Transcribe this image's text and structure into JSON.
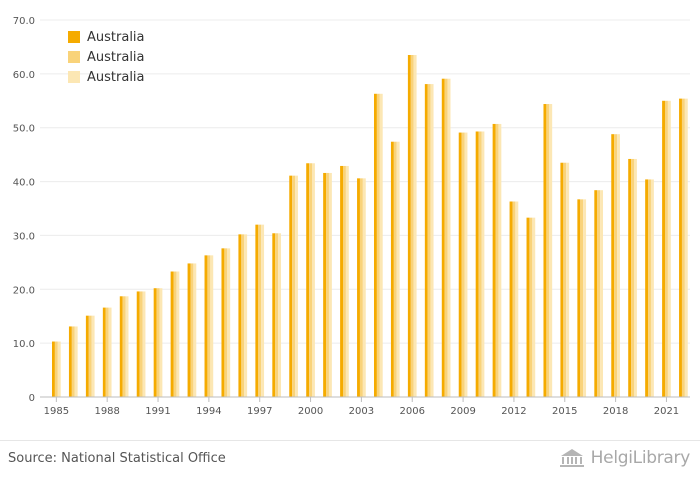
{
  "chart_data": {
    "type": "bar",
    "categories": [
      "1985",
      "1986",
      "1987",
      "1988",
      "1989",
      "1990",
      "1991",
      "1992",
      "1993",
      "1994",
      "1995",
      "1996",
      "1997",
      "1998",
      "1999",
      "2000",
      "2001",
      "2002",
      "2003",
      "2004",
      "2005",
      "2006",
      "2007",
      "2008",
      "2009",
      "2010",
      "2011",
      "2012",
      "2013",
      "2014",
      "2015",
      "2016",
      "2017",
      "2018",
      "2019",
      "2020",
      "2021",
      "2022"
    ],
    "x_tick_labels": [
      "1985",
      "1988",
      "1991",
      "1994",
      "1997",
      "2000",
      "2003",
      "2006",
      "2009",
      "2012",
      "2015",
      "2018",
      "2021"
    ],
    "y_tick_labels": [
      "0",
      "10.0",
      "20.0",
      "30.0",
      "40.0",
      "50.0",
      "60.0",
      "70.0"
    ],
    "ylim": [
      0,
      70
    ],
    "series": [
      {
        "name": "Australia",
        "color": "#f5ab00",
        "values": [
          10.3,
          13.1,
          15.1,
          16.6,
          18.7,
          19.6,
          20.2,
          23.3,
          24.8,
          26.3,
          27.6,
          30.2,
          32.0,
          30.4,
          41.1,
          43.4,
          41.6,
          42.9,
          40.6,
          56.3,
          47.4,
          63.5,
          58.1,
          59.1,
          49.1,
          49.3,
          50.7,
          36.3,
          33.3,
          54.4,
          43.5,
          36.7,
          38.4,
          48.8,
          44.2,
          40.4,
          55.0,
          55.4
        ]
      },
      {
        "name": "Australia",
        "color": "#f9d37a",
        "values": [
          10.3,
          13.1,
          15.1,
          16.6,
          18.7,
          19.6,
          20.2,
          23.3,
          24.8,
          26.3,
          27.6,
          30.2,
          32.0,
          30.4,
          41.1,
          43.4,
          41.6,
          42.9,
          40.6,
          56.3,
          47.4,
          63.5,
          58.1,
          59.1,
          49.1,
          49.3,
          50.7,
          36.3,
          33.3,
          54.4,
          43.5,
          36.7,
          38.4,
          48.8,
          44.2,
          40.4,
          55.0,
          55.4
        ]
      },
      {
        "name": "Australia",
        "color": "#fce7b4",
        "values": [
          10.3,
          13.1,
          15.1,
          16.6,
          18.7,
          19.6,
          20.2,
          23.3,
          24.8,
          26.3,
          27.6,
          30.2,
          32.0,
          30.4,
          41.1,
          43.4,
          41.6,
          42.9,
          40.6,
          56.3,
          47.4,
          63.5,
          58.1,
          59.1,
          49.1,
          49.3,
          50.7,
          36.3,
          33.3,
          54.4,
          43.5,
          36.7,
          38.4,
          48.8,
          44.2,
          40.4,
          55.0,
          55.4
        ]
      }
    ],
    "grid": true,
    "legend_position": "top-left"
  },
  "source": "Source: National Statistical Office",
  "logo": {
    "text": "HelgiLibrary",
    "icon": "library-building-icon"
  }
}
